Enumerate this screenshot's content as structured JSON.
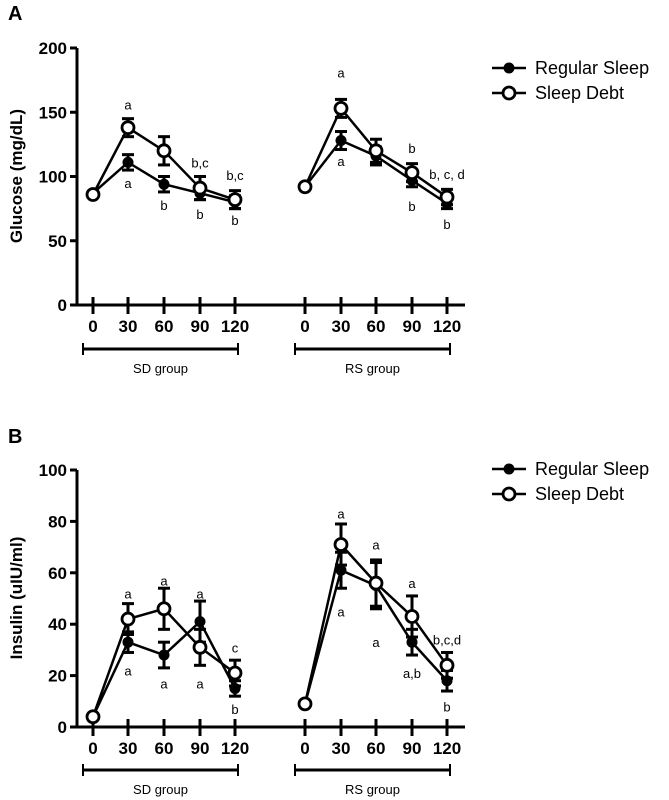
{
  "chart_data": [
    {
      "type": "line",
      "panel_label": "A",
      "ylabel": "Glucose (mg/dL)",
      "ylim": [
        0,
        200
      ],
      "yticks": [
        0,
        50,
        100,
        150,
        200
      ],
      "x": [
        0,
        30,
        60,
        90,
        120
      ],
      "groups": [
        "SD group",
        "RS group"
      ],
      "legend": {
        "placement": "top-right",
        "entries": [
          "Regular Sleep",
          "Sleep Debt"
        ]
      },
      "series": [
        {
          "name": "Regular Sleep",
          "marker": "filled",
          "group": "SD group",
          "values": [
            87,
            111,
            94,
            87,
            80
          ],
          "errors": [
            2,
            6,
            6,
            5,
            5
          ]
        },
        {
          "name": "Sleep Debt",
          "marker": "open",
          "group": "SD group",
          "values": [
            86,
            138,
            120,
            91,
            82
          ],
          "errors": [
            2,
            7,
            11,
            9,
            7
          ]
        },
        {
          "name": "Regular Sleep",
          "marker": "filled",
          "group": "RS group",
          "values": [
            92,
            128,
            116,
            97,
            79
          ],
          "errors": [
            2,
            7,
            7,
            5,
            4
          ]
        },
        {
          "name": "Sleep Debt",
          "marker": "open",
          "group": "RS group",
          "values": [
            92,
            153,
            120,
            103,
            84
          ],
          "errors": [
            2,
            7,
            9,
            7,
            6
          ]
        }
      ],
      "annotations": [
        {
          "group": 0,
          "x": 30,
          "y": 156,
          "text": "a"
        },
        {
          "group": 0,
          "x": 30,
          "y": 95,
          "text": "a"
        },
        {
          "group": 0,
          "x": 60,
          "y": 78,
          "text": "b"
        },
        {
          "group": 0,
          "x": 90,
          "y": 111,
          "text": "b,c"
        },
        {
          "group": 0,
          "x": 90,
          "y": 71,
          "text": "b"
        },
        {
          "group": 0,
          "x": 120,
          "y": 101,
          "text": "b,c"
        },
        {
          "group": 0,
          "x": 120,
          "y": 66,
          "text": "b"
        },
        {
          "group": 1,
          "x": 30,
          "y": 181,
          "text": "a"
        },
        {
          "group": 1,
          "x": 30,
          "y": 112,
          "text": "a"
        },
        {
          "group": 1,
          "x": 90,
          "y": 122,
          "text": "b"
        },
        {
          "group": 1,
          "x": 90,
          "y": 77,
          "text": "b"
        },
        {
          "group": 1,
          "x": 120,
          "y": 102,
          "text": "b, c, d"
        },
        {
          "group": 1,
          "x": 120,
          "y": 63,
          "text": "b"
        }
      ]
    },
    {
      "type": "line",
      "panel_label": "B",
      "ylabel": "Insulin (uIU/ml)",
      "ylim": [
        0,
        100
      ],
      "yticks": [
        0,
        20,
        40,
        60,
        80,
        100
      ],
      "x": [
        0,
        30,
        60,
        90,
        120
      ],
      "groups": [
        "SD group",
        "RS group"
      ],
      "legend": {
        "placement": "top-right",
        "entries": [
          "Regular Sleep",
          "Sleep Debt"
        ]
      },
      "series": [
        {
          "name": "Regular Sleep",
          "marker": "filled",
          "group": "SD group",
          "values": [
            4,
            33,
            28,
            41,
            15
          ],
          "errors": [
            1,
            4,
            5,
            8,
            3
          ]
        },
        {
          "name": "Sleep Debt",
          "marker": "open",
          "group": "SD group",
          "values": [
            4,
            42,
            46,
            31,
            21
          ],
          "errors": [
            1,
            6,
            8,
            7,
            5
          ]
        },
        {
          "name": "Regular Sleep",
          "marker": "filled",
          "group": "RS group",
          "values": [
            9,
            61,
            55,
            33,
            18
          ],
          "errors": [
            1,
            7,
            9,
            5,
            4
          ]
        },
        {
          "name": "Sleep Debt",
          "marker": "open",
          "group": "RS group",
          "values": [
            9,
            71,
            56,
            43,
            24
          ],
          "errors": [
            1,
            8,
            9,
            8,
            5
          ]
        }
      ],
      "annotations": [
        {
          "group": 0,
          "x": 30,
          "y": 52,
          "text": "a"
        },
        {
          "group": 0,
          "x": 30,
          "y": 22,
          "text": "a"
        },
        {
          "group": 0,
          "x": 60,
          "y": 57,
          "text": "a"
        },
        {
          "group": 0,
          "x": 60,
          "y": 17,
          "text": "a"
        },
        {
          "group": 0,
          "x": 90,
          "y": 52,
          "text": "a"
        },
        {
          "group": 0,
          "x": 90,
          "y": 17,
          "text": "a"
        },
        {
          "group": 0,
          "x": 120,
          "y": 31,
          "text": "c"
        },
        {
          "group": 0,
          "x": 120,
          "y": 7,
          "text": "b"
        },
        {
          "group": 1,
          "x": 30,
          "y": 83,
          "text": "a"
        },
        {
          "group": 1,
          "x": 30,
          "y": 45,
          "text": "a"
        },
        {
          "group": 1,
          "x": 60,
          "y": 71,
          "text": "a"
        },
        {
          "group": 1,
          "x": 60,
          "y": 33,
          "text": "a"
        },
        {
          "group": 1,
          "x": 90,
          "y": 56,
          "text": "a"
        },
        {
          "group": 1,
          "x": 90,
          "y": 21,
          "text": "a,b"
        },
        {
          "group": 1,
          "x": 120,
          "y": 34,
          "text": "b,c,d"
        },
        {
          "group": 1,
          "x": 120,
          "y": 8,
          "text": "b"
        }
      ]
    }
  ]
}
